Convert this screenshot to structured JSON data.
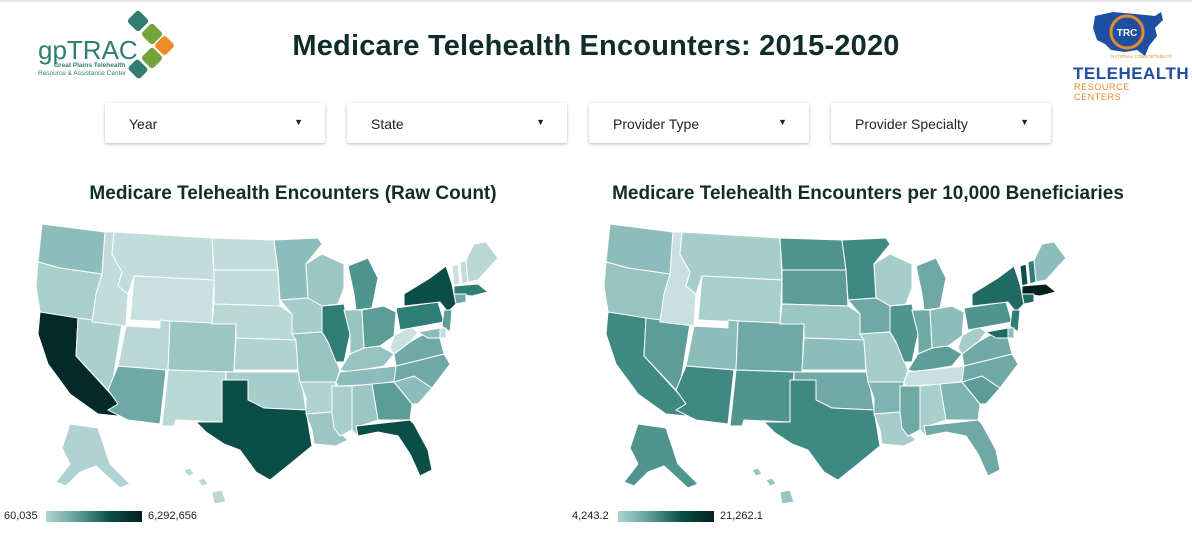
{
  "header": {
    "title": "Medicare Telehealth Encounters: 2015-2020",
    "logo_left": {
      "name": "gpTRAC",
      "line1": "Great Plains Telehealth",
      "line2": "Resource & Assistance Center",
      "colors": [
        "#2f7e6f",
        "#75a33c",
        "#f08a24"
      ]
    },
    "logo_right": {
      "badge": "TRC",
      "line1": "NATIONAL CONSORTIUM OF",
      "line2": "TELEHEALTH",
      "line3": "RESOURCE CENTERS",
      "colors": [
        "#1f4fa0",
        "#e58a2f"
      ]
    }
  },
  "filters": [
    {
      "label": "Year"
    },
    {
      "label": "State"
    },
    {
      "label": "Provider Type"
    },
    {
      "label": "Provider Specialty"
    }
  ],
  "maps": [
    {
      "title": "Medicare Telehealth Encounters (Raw Count)",
      "legend_min": "60,035",
      "legend_max": "6,292,656",
      "colors": {
        "WA": "#8cbdba",
        "OR": "#a9cfcd",
        "CA": "#042926",
        "NV": "#a9cfcd",
        "ID": "#c2dcdb",
        "MT": "#c2dcdb",
        "WY": "#c8e0df",
        "UT": "#b8d7d5",
        "AZ": "#6ea9a5",
        "CO": "#9bc6c3",
        "NM": "#b8d7d5",
        "ND": "#c2dcdb",
        "SD": "#c2dcdb",
        "NE": "#b8d7d5",
        "KS": "#b0d3d1",
        "OK": "#a6cdca",
        "TX": "#0b4d47",
        "MN": "#8cbdba",
        "IA": "#a6cdca",
        "MO": "#97c3c0",
        "AR": "#b0d3d1",
        "LA": "#9bc6c3",
        "WI": "#9bc6c3",
        "IL": "#2e7d76",
        "MI": "#4f948e",
        "IN": "#97c3c0",
        "OH": "#5d9d97",
        "KY": "#97c3c0",
        "TN": "#8cbdba",
        "MS": "#a9cfcd",
        "AL": "#9bc6c3",
        "GA": "#5d9d97",
        "FL": "#0b4d47",
        "SC": "#8cbdba",
        "NC": "#6ea9a5",
        "VA": "#6ea9a5",
        "WV": "#c8e0df",
        "PA": "#2e7d76",
        "NY": "#0b4d47",
        "ME": "#b8d7d5",
        "NH": "#c2dcdb",
        "VT": "#c8e0df",
        "MA": "#2e7d76",
        "CT": "#6ea9a5",
        "NJ": "#5d9d97",
        "MD": "#8cbdba",
        "DE": "#c2dcdb",
        "AK": "#b0d3d1",
        "HI": "#b8d7d5"
      }
    },
    {
      "title": "Medicare Telehealth Encounters per 10,000 Beneficiaries",
      "legend_min": "4,243.2",
      "legend_max": "21,262.1",
      "colors": {
        "WA": "#8cbdba",
        "OR": "#97c3c0",
        "CA": "#3f8983",
        "NV": "#5d9d97",
        "ID": "#c8e0df",
        "MT": "#a6cdca",
        "WY": "#a9cfcd",
        "UT": "#8cbdba",
        "AZ": "#3f8983",
        "CO": "#6ea9a5",
        "NM": "#4f948e",
        "ND": "#4f948e",
        "SD": "#5d9d97",
        "NE": "#9bc6c3",
        "KS": "#8cbdba",
        "OK": "#6ea9a5",
        "TX": "#3f8983",
        "MN": "#3f8983",
        "IA": "#6ea9a5",
        "MO": "#a6cdca",
        "AR": "#7fb3af",
        "LA": "#a6cdca",
        "WI": "#a6cdca",
        "IL": "#4f948e",
        "MI": "#6ea9a5",
        "IN": "#6ea9a5",
        "OH": "#8cbdba",
        "KY": "#5d9d97",
        "TN": "#c8e0df",
        "MS": "#6ea9a5",
        "AL": "#a9cfcd",
        "GA": "#7fb3af",
        "FL": "#6ea9a5",
        "SC": "#5d9d97",
        "NC": "#6ea9a5",
        "VA": "#6ea9a5",
        "WV": "#a6cdca",
        "PA": "#4f948e",
        "NY": "#1f6b64",
        "ME": "#8cbdba",
        "NH": "#2e7d76",
        "VT": "#0b4d47",
        "MA": "#04201d",
        "CT": "#1f6b64",
        "NJ": "#2e7d76",
        "MD": "#1f6b64",
        "DE": "#8cbdba",
        "AK": "#4f948e",
        "HI": "#97c3c0"
      }
    }
  ]
}
